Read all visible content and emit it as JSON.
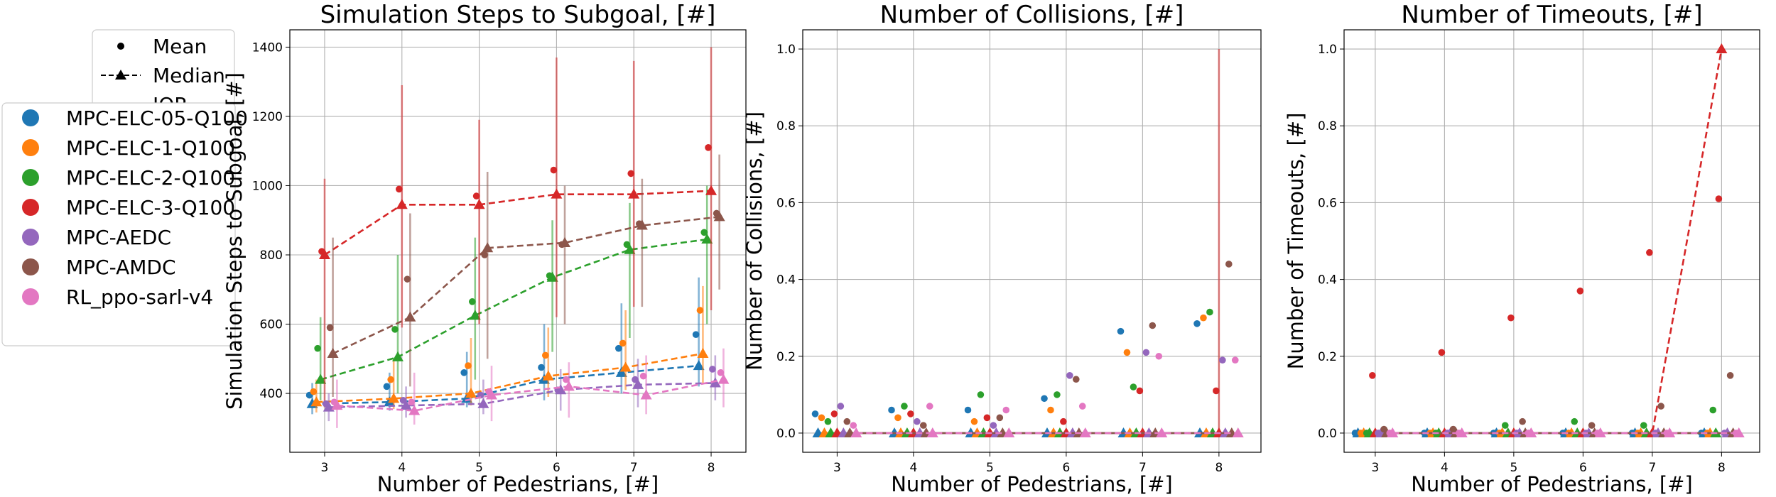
{
  "colors": {
    "MPC-ELC-05-Q100": "#1f77b4",
    "MPC-ELC-1-Q100": "#ff7f0e",
    "MPC-ELC-2-Q100": "#2ca02c",
    "MPC-ELC-3-Q100": "#d62728",
    "MPC-AEDC": "#9467bd",
    "MPC-AMDC": "#8c564b",
    "RL_ppo-sarl-v4": "#e377c2"
  },
  "legend": {
    "style_entries": [
      "Mean",
      "Median",
      "IQR"
    ],
    "series_entries": [
      "MPC-ELC-05-Q100",
      "MPC-ELC-1-Q100",
      "MPC-ELC-2-Q100",
      "MPC-ELC-3-Q100",
      "MPC-AEDC",
      "MPC-AMDC",
      "RL_ppo-sarl-v4"
    ]
  },
  "chart_data": [
    {
      "type": "line",
      "title": "Simulation Steps to Subgoal, [#]",
      "xlabel": "Number of Pedestrians, [#]",
      "ylabel": "Simulation Steps to Subgoal, [#]",
      "xlim": [
        2.55,
        8.45
      ],
      "ylim": [
        230,
        1450
      ],
      "xticks": [
        3,
        4,
        5,
        6,
        7,
        8
      ],
      "yticks": [
        400,
        600,
        800,
        1000,
        1200,
        1400
      ],
      "grid": true,
      "x": [
        3,
        4,
        5,
        6,
        7,
        8
      ],
      "series": [
        {
          "name": "MPC-ELC-05-Q100",
          "mean": [
            395,
            420,
            460,
            475,
            530,
            570
          ],
          "median": [
            370,
            375,
            385,
            440,
            460,
            480
          ],
          "iqr_low": [
            340,
            350,
            360,
            380,
            400,
            420
          ],
          "iqr_high": [
            430,
            460,
            520,
            600,
            660,
            735
          ]
        },
        {
          "name": "MPC-ELC-1-Q100",
          "mean": [
            405,
            440,
            480,
            510,
            545,
            640
          ],
          "median": [
            375,
            385,
            400,
            450,
            475,
            515
          ],
          "iqr_low": [
            345,
            355,
            365,
            390,
            410,
            430
          ],
          "iqr_high": [
            440,
            500,
            560,
            590,
            640,
            710
          ]
        },
        {
          "name": "MPC-ELC-2-Q100",
          "mean": [
            530,
            585,
            665,
            740,
            830,
            865
          ],
          "median": [
            440,
            505,
            625,
            735,
            815,
            845
          ],
          "iqr_low": [
            380,
            400,
            440,
            520,
            560,
            600
          ],
          "iqr_high": [
            620,
            800,
            850,
            900,
            950,
            1000
          ]
        },
        {
          "name": "MPC-ELC-3-Q100",
          "mean": [
            810,
            990,
            970,
            1045,
            1035,
            1110
          ],
          "median": [
            800,
            945,
            945,
            975,
            975,
            985
          ],
          "iqr_low": [
            360,
            590,
            600,
            620,
            650,
            640
          ],
          "iqr_high": [
            1020,
            1290,
            1190,
            1370,
            1360,
            1400
          ]
        },
        {
          "name": "MPC-AEDC",
          "mean": [
            370,
            380,
            395,
            410,
            440,
            470
          ],
          "median": [
            360,
            365,
            370,
            410,
            425,
            430
          ],
          "iqr_low": [
            320,
            330,
            340,
            350,
            360,
            380
          ],
          "iqr_high": [
            400,
            420,
            440,
            470,
            500,
            510
          ]
        },
        {
          "name": "MPC-AMDC",
          "mean": [
            590,
            730,
            800,
            830,
            890,
            920
          ],
          "median": [
            515,
            620,
            820,
            835,
            885,
            910
          ],
          "iqr_low": [
            390,
            420,
            500,
            600,
            650,
            700
          ],
          "iqr_high": [
            850,
            920,
            1040,
            1000,
            1020,
            1090
          ]
        },
        {
          "name": "RL_ppo-sarl-v4",
          "mean": [
            375,
            375,
            405,
            440,
            450,
            460
          ],
          "median": [
            365,
            350,
            395,
            420,
            395,
            440
          ],
          "iqr_low": [
            300,
            310,
            320,
            330,
            340,
            360
          ],
          "iqr_high": [
            440,
            460,
            480,
            490,
            510,
            530
          ]
        }
      ]
    },
    {
      "type": "line",
      "title": "Number of Collisions, [#]",
      "xlabel": "Number of Pedestrians, [#]",
      "ylabel": "Number of Collisions, [#]",
      "xlim": [
        2.55,
        8.55
      ],
      "ylim": [
        -0.05,
        1.05
      ],
      "xticks": [
        3,
        4,
        5,
        6,
        7,
        8
      ],
      "yticks": [
        0.0,
        0.2,
        0.4,
        0.6,
        0.8,
        1.0
      ],
      "grid": true,
      "x": [
        3,
        4,
        5,
        6,
        7,
        8
      ],
      "series": [
        {
          "name": "MPC-ELC-05-Q100",
          "mean": [
            0.05,
            0.06,
            0.06,
            0.09,
            0.265,
            0.285
          ],
          "median": [
            0,
            0,
            0,
            0,
            0,
            0
          ]
        },
        {
          "name": "MPC-ELC-1-Q100",
          "mean": [
            0.04,
            0.04,
            0.03,
            0.06,
            0.21,
            0.3
          ],
          "median": [
            0,
            0,
            0,
            0,
            0,
            0
          ]
        },
        {
          "name": "MPC-ELC-2-Q100",
          "mean": [
            0.03,
            0.07,
            0.1,
            0.1,
            0.12,
            0.315
          ],
          "median": [
            0,
            0,
            0,
            0,
            0,
            0
          ]
        },
        {
          "name": "MPC-ELC-3-Q100",
          "mean": [
            0.05,
            0.05,
            0.04,
            0.03,
            0.11,
            0.11
          ],
          "median": [
            0,
            0,
            0,
            0,
            0,
            0
          ],
          "iqr_low": [
            null,
            null,
            null,
            null,
            null,
            0
          ],
          "iqr_high": [
            null,
            null,
            null,
            null,
            null,
            1.0
          ]
        },
        {
          "name": "MPC-AEDC",
          "mean": [
            0.07,
            0.03,
            0.02,
            0.15,
            0.21,
            0.19
          ],
          "median": [
            0,
            0,
            0,
            0,
            0,
            0
          ]
        },
        {
          "name": "MPC-AMDC",
          "mean": [
            0.03,
            0.02,
            0.04,
            0.14,
            0.28,
            0.44
          ],
          "median": [
            0,
            0,
            0,
            0,
            0,
            0
          ]
        },
        {
          "name": "RL_ppo-sarl-v4",
          "mean": [
            0.02,
            0.07,
            0.06,
            0.07,
            0.2,
            0.19
          ],
          "median": [
            0,
            0,
            0,
            0,
            0,
            0
          ]
        }
      ]
    },
    {
      "type": "line",
      "title": "Number of Timeouts, [#]",
      "xlabel": "Number of Pedestrians, [#]",
      "ylabel": "Number of Timeouts, [#]",
      "xlim": [
        2.55,
        8.55
      ],
      "ylim": [
        -0.05,
        1.05
      ],
      "xticks": [
        3,
        4,
        5,
        6,
        7,
        8
      ],
      "yticks": [
        0.0,
        0.2,
        0.4,
        0.6,
        0.8,
        1.0
      ],
      "grid": true,
      "x": [
        3,
        4,
        5,
        6,
        7,
        8
      ],
      "series": [
        {
          "name": "MPC-ELC-05-Q100",
          "mean": [
            0,
            0,
            0,
            0,
            0,
            0
          ],
          "median": [
            0,
            0,
            0,
            0,
            0,
            0
          ]
        },
        {
          "name": "MPC-ELC-1-Q100",
          "mean": [
            0,
            0,
            0,
            0,
            0,
            0
          ],
          "median": [
            0,
            0,
            0,
            0,
            0,
            0
          ]
        },
        {
          "name": "MPC-ELC-2-Q100",
          "mean": [
            0,
            0,
            0.02,
            0.03,
            0.02,
            0.06
          ],
          "median": [
            0,
            0,
            0,
            0,
            0,
            0
          ]
        },
        {
          "name": "MPC-ELC-3-Q100",
          "mean": [
            0.15,
            0.21,
            0.3,
            0.37,
            0.47,
            0.61
          ],
          "median": [
            0,
            0,
            0,
            0,
            0,
            1.0
          ]
        },
        {
          "name": "MPC-AEDC",
          "mean": [
            0,
            0,
            0,
            0,
            0,
            0
          ],
          "median": [
            0,
            0,
            0,
            0,
            0,
            0
          ]
        },
        {
          "name": "MPC-AMDC",
          "mean": [
            0.01,
            0.01,
            0.03,
            0.02,
            0.07,
            0.15
          ],
          "median": [
            0,
            0,
            0,
            0,
            0,
            0
          ]
        },
        {
          "name": "RL_ppo-sarl-v4",
          "mean": [
            0,
            0,
            0,
            0,
            0,
            0
          ],
          "median": [
            0,
            0,
            0,
            0,
            0,
            0
          ]
        }
      ]
    }
  ]
}
